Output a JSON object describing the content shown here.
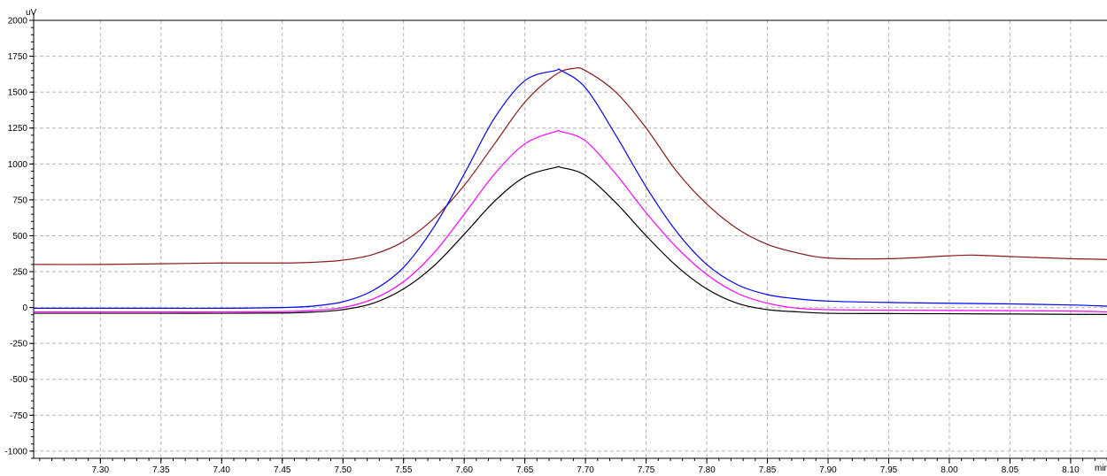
{
  "chart_data": {
    "type": "line",
    "title": "",
    "xlabel": "min",
    "ylabel": "uV",
    "xlim": [
      7.245,
      8.13
    ],
    "ylim": [
      -1050,
      2000
    ],
    "grid": true,
    "x_ticks": [
      7.3,
      7.35,
      7.4,
      7.45,
      7.5,
      7.55,
      7.6,
      7.65,
      7.7,
      7.75,
      7.8,
      7.85,
      7.9,
      7.95,
      8.0,
      8.05,
      8.1
    ],
    "x_tick_labels": [
      "7.30",
      "7.35",
      "7.40",
      "7.45",
      "7.50",
      "7.55",
      "7.60",
      "7.65",
      "7.70",
      "7.75",
      "7.80",
      "7.85",
      "7.90",
      "7.95",
      "8.00",
      "8.05",
      "8.10"
    ],
    "y_ticks": [
      2000,
      1750,
      1500,
      1250,
      1000,
      750,
      500,
      250,
      0,
      -250,
      -500,
      -750,
      -1000
    ],
    "y_tick_labels": [
      "2000",
      "1750",
      "1500",
      "1250",
      "1000",
      "750",
      "500",
      "250",
      "0",
      "-250",
      "-500",
      "-750",
      "-1000"
    ],
    "series": [
      {
        "color": "#8b1a1a",
        "x": [
          7.245,
          7.3,
          7.35,
          7.4,
          7.45,
          7.475,
          7.5,
          7.525,
          7.55,
          7.575,
          7.6,
          7.625,
          7.65,
          7.675,
          7.69,
          7.7,
          7.725,
          7.75,
          7.775,
          7.8,
          7.825,
          7.85,
          7.875,
          7.9,
          7.95,
          8.0,
          8.02,
          8.05,
          8.1,
          8.13
        ],
        "y": [
          300,
          300,
          305,
          310,
          310,
          315,
          330,
          370,
          460,
          620,
          850,
          1140,
          1430,
          1620,
          1665,
          1650,
          1500,
          1250,
          950,
          720,
          550,
          440,
          380,
          345,
          340,
          360,
          365,
          355,
          340,
          335
        ]
      },
      {
        "color": "#0000ff",
        "x": [
          7.245,
          7.3,
          7.35,
          7.4,
          7.45,
          7.475,
          7.5,
          7.525,
          7.55,
          7.575,
          7.6,
          7.625,
          7.65,
          7.675,
          7.68,
          7.7,
          7.725,
          7.75,
          7.775,
          7.8,
          7.825,
          7.85,
          7.875,
          7.9,
          7.95,
          8.0,
          8.05,
          8.1,
          8.13
        ],
        "y": [
          -5,
          -5,
          -5,
          -5,
          0,
          10,
          40,
          120,
          280,
          560,
          930,
          1320,
          1580,
          1650,
          1650,
          1530,
          1200,
          840,
          530,
          300,
          160,
          90,
          60,
          45,
          35,
          30,
          25,
          18,
          10
        ]
      },
      {
        "color": "#ff00ff",
        "x": [
          7.245,
          7.3,
          7.35,
          7.4,
          7.45,
          7.475,
          7.5,
          7.525,
          7.55,
          7.575,
          7.6,
          7.625,
          7.65,
          7.675,
          7.68,
          7.7,
          7.725,
          7.75,
          7.775,
          7.8,
          7.825,
          7.85,
          7.875,
          7.9,
          7.95,
          8.0,
          8.05,
          8.1,
          8.13
        ],
        "y": [
          -30,
          -30,
          -30,
          -30,
          -28,
          -20,
          0,
          60,
          180,
          380,
          650,
          930,
          1140,
          1225,
          1225,
          1160,
          930,
          660,
          420,
          230,
          100,
          30,
          -5,
          -15,
          -18,
          -20,
          -22,
          -25,
          -30
        ]
      },
      {
        "color": "#000000",
        "x": [
          7.245,
          7.3,
          7.35,
          7.4,
          7.45,
          7.475,
          7.5,
          7.525,
          7.55,
          7.575,
          7.6,
          7.625,
          7.65,
          7.675,
          7.68,
          7.7,
          7.725,
          7.75,
          7.775,
          7.8,
          7.825,
          7.85,
          7.875,
          7.9,
          7.95,
          8.0,
          8.05,
          8.1,
          8.13
        ],
        "y": [
          -40,
          -40,
          -40,
          -40,
          -38,
          -32,
          -15,
          30,
          130,
          290,
          510,
          740,
          910,
          975,
          975,
          920,
          730,
          500,
          290,
          130,
          30,
          -15,
          -30,
          -40,
          -42,
          -43,
          -45,
          -47,
          -48
        ]
      }
    ]
  }
}
